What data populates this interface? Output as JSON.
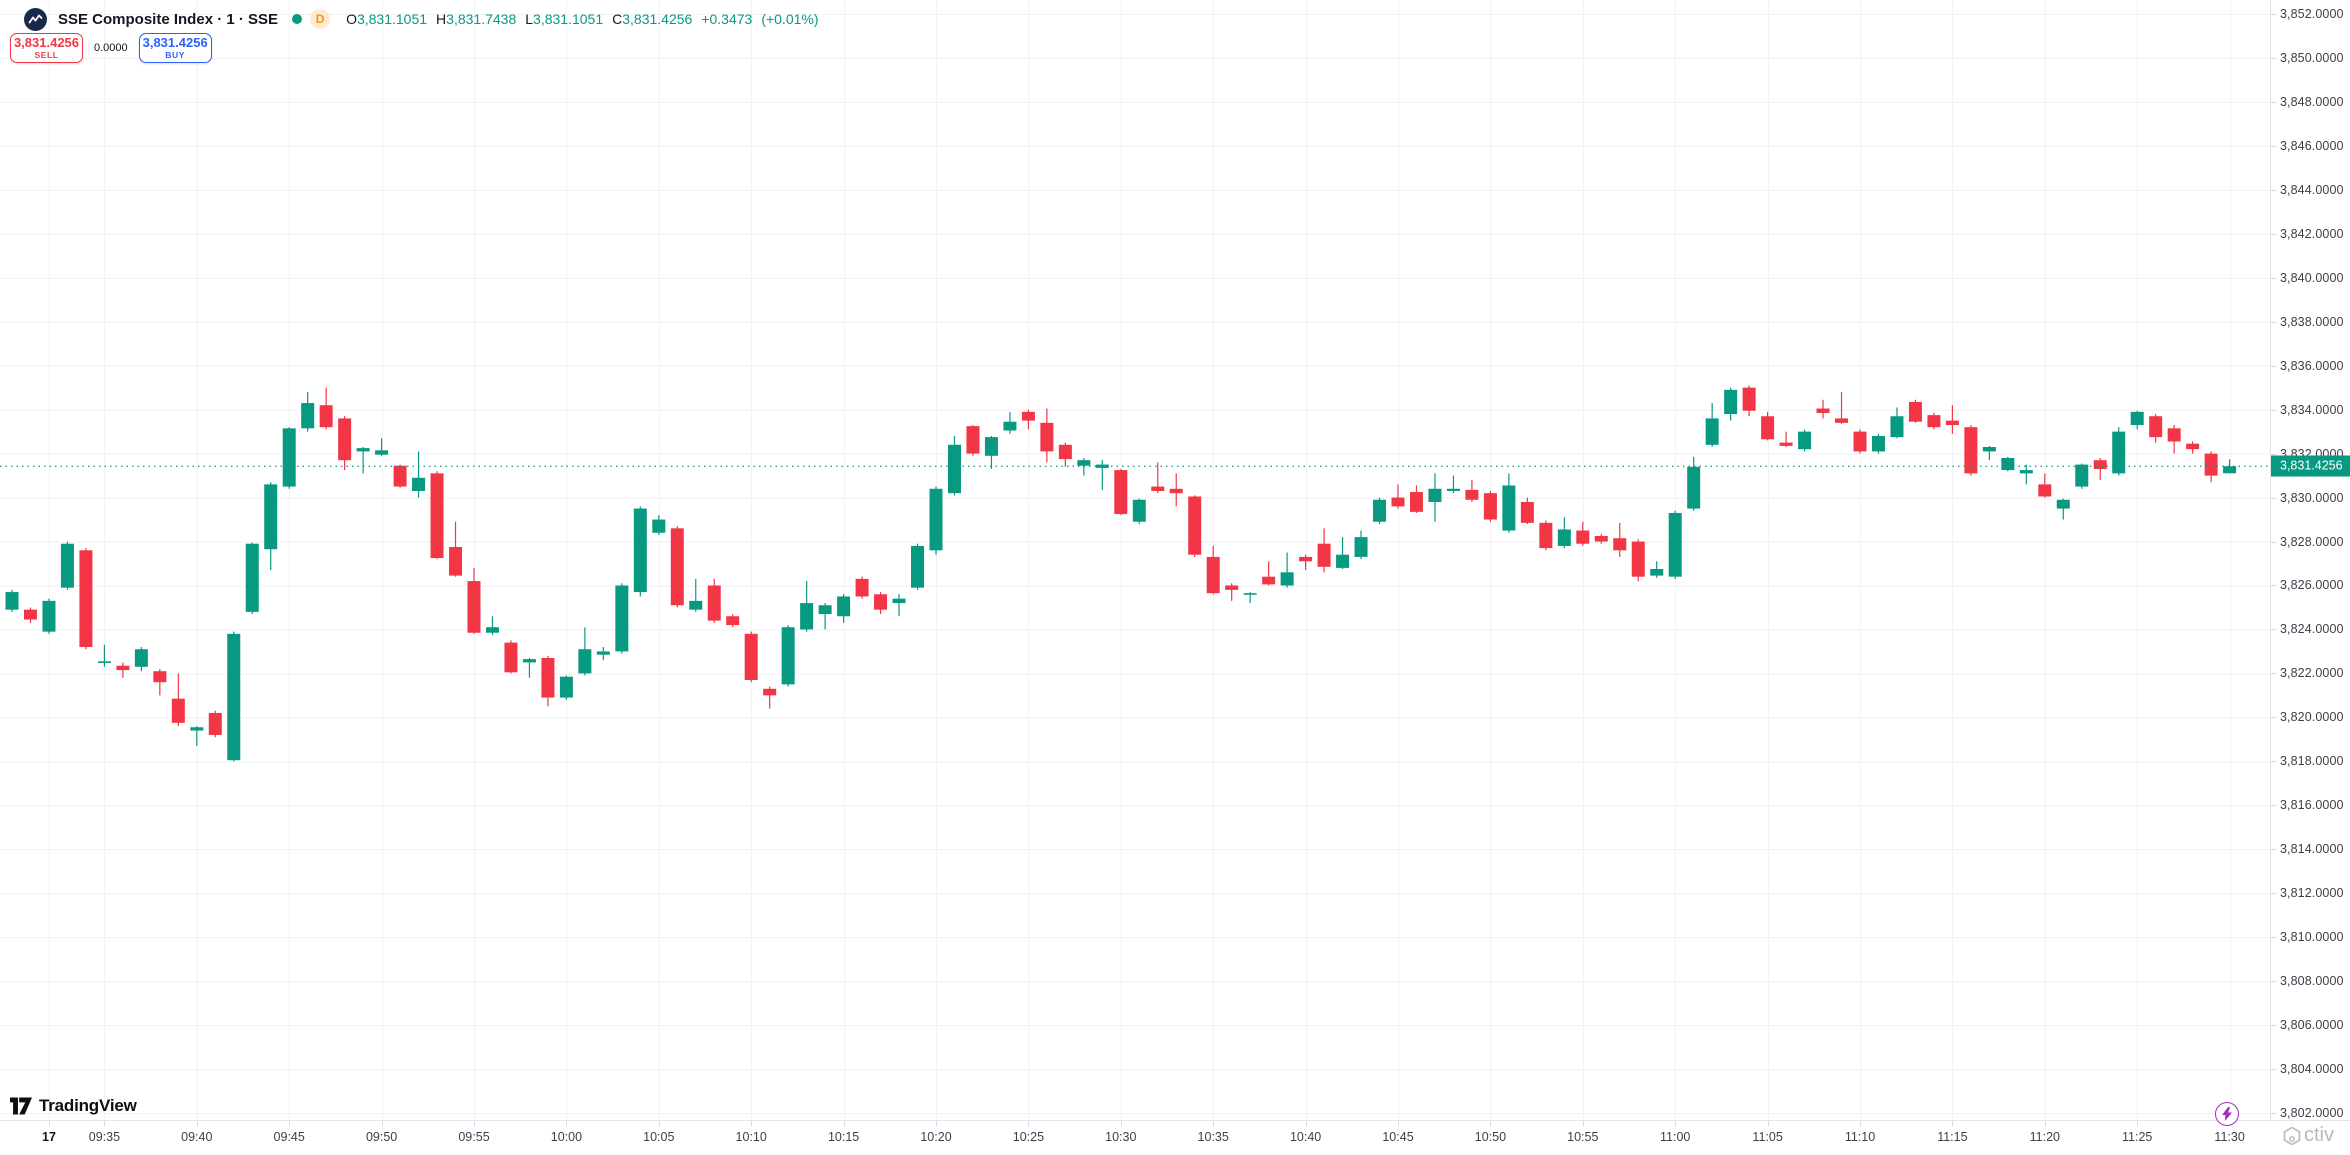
{
  "header": {
    "symbol_title": "SSE Composite Index · 1 · SSE",
    "delay_badge": "D",
    "ohlc": {
      "o_label": "O",
      "o": "3,831.1051",
      "h_label": "H",
      "h": "3,831.7438",
      "l_label": "L",
      "l": "3,831.1051",
      "c_label": "C",
      "c": "3,831.4256",
      "change": "+0.3473",
      "change_pct": "(+0.01%)"
    }
  },
  "order_panel": {
    "sell_price": "3,831.4256",
    "sell_label": "SELL",
    "spread": "0.0000",
    "buy_price": "3,831.4256",
    "buy_label": "BUY"
  },
  "price_axis": {
    "labels": [
      "3,852.0000",
      "3,850.0000",
      "3,848.0000",
      "3,846.0000",
      "3,844.0000",
      "3,842.0000",
      "3,840.0000",
      "3,838.0000",
      "3,836.0000",
      "3,834.0000",
      "3,832.0000",
      "3,830.0000",
      "3,828.0000",
      "3,826.0000",
      "3,824.0000",
      "3,822.0000",
      "3,820.0000",
      "3,818.0000",
      "3,816.0000",
      "3,814.0000",
      "3,812.0000",
      "3,810.0000",
      "3,808.0000",
      "3,806.0000",
      "3,804.0000",
      "3,802.0000"
    ],
    "last_price_label": "3,831.4256"
  },
  "time_axis": {
    "labels": [
      {
        "text": "17",
        "i": 2
      },
      {
        "text": "09:35",
        "i": 5
      },
      {
        "text": "09:40",
        "i": 10
      },
      {
        "text": "09:45",
        "i": 15
      },
      {
        "text": "09:50",
        "i": 20
      },
      {
        "text": "09:55",
        "i": 25
      },
      {
        "text": "10:00",
        "i": 30
      },
      {
        "text": "10:05",
        "i": 35
      },
      {
        "text": "10:10",
        "i": 40
      },
      {
        "text": "10:15",
        "i": 45
      },
      {
        "text": "10:20",
        "i": 50
      },
      {
        "text": "10:25",
        "i": 55
      },
      {
        "text": "10:30",
        "i": 60
      },
      {
        "text": "10:35",
        "i": 65
      },
      {
        "text": "10:40",
        "i": 70
      },
      {
        "text": "10:45",
        "i": 75
      },
      {
        "text": "10:50",
        "i": 80
      },
      {
        "text": "10:55",
        "i": 85
      },
      {
        "text": "11:00",
        "i": 90
      },
      {
        "text": "11:05",
        "i": 95
      },
      {
        "text": "11:10",
        "i": 100
      },
      {
        "text": "11:15",
        "i": 105
      },
      {
        "text": "11:20",
        "i": 110
      },
      {
        "text": "11:25",
        "i": 115
      },
      {
        "text": "11:30",
        "i": 120
      }
    ]
  },
  "footer": {
    "tradingview_label": "TradingView",
    "watermark_text": "ctiv"
  },
  "colors": {
    "up": "#089981",
    "down": "#f23645",
    "grid": "#f0f2f5",
    "last_price_line": "#089981",
    "last_price_bg": "#089981",
    "sell": "#f23645",
    "buy": "#2962ff",
    "lightning": "#a32cc4"
  },
  "chart_data": {
    "type": "candlestick",
    "title": "SSE Composite Index",
    "interval": "1",
    "exchange": "SSE",
    "session_date_label": "17",
    "last_price": 3831.4256,
    "y_axis": {
      "min": 3802,
      "max": 3852,
      "tick_step": 2,
      "grid": true
    },
    "x_axis": {
      "unit": "minute",
      "start": "09:30",
      "end": "11:30"
    },
    "columns": [
      "time",
      "open",
      "high",
      "low",
      "close"
    ],
    "rows": [
      [
        "09:30",
        3824.9,
        3825.8,
        3824.8,
        3825.7
      ],
      [
        "09:31",
        3824.9,
        3825.0,
        3824.3,
        3824.45
      ],
      [
        "09:32",
        3823.9,
        3825.4,
        3823.8,
        3825.3
      ],
      [
        "09:33",
        3825.9,
        3828.0,
        3825.8,
        3827.9
      ],
      [
        "09:34",
        3827.6,
        3827.7,
        3823.1,
        3823.2
      ],
      [
        "09:35",
        3822.5,
        3823.3,
        3822.3,
        3822.55
      ],
      [
        "09:36",
        3822.35,
        3822.5,
        3821.8,
        3822.15
      ],
      [
        "09:37",
        3822.3,
        3823.2,
        3822.1,
        3823.1
      ],
      [
        "09:38",
        3822.1,
        3822.2,
        3821.0,
        3821.6
      ],
      [
        "09:39",
        3820.85,
        3822.0,
        3819.6,
        3819.75
      ],
      [
        "09:40",
        3819.4,
        3819.6,
        3818.7,
        3819.55
      ],
      [
        "09:41",
        3820.2,
        3820.3,
        3819.1,
        3819.2
      ],
      [
        "09:42",
        3818.05,
        3823.9,
        3818.0,
        3823.8
      ],
      [
        "09:43",
        3824.8,
        3827.95,
        3824.7,
        3827.9
      ],
      [
        "09:44",
        3827.65,
        3830.7,
        3826.7,
        3830.6
      ],
      [
        "09:45",
        3830.5,
        3833.2,
        3830.4,
        3833.15
      ],
      [
        "09:46",
        3833.15,
        3834.8,
        3833.0,
        3834.3
      ],
      [
        "09:47",
        3834.2,
        3835.0,
        3833.1,
        3833.2
      ],
      [
        "09:48",
        3833.6,
        3833.7,
        3831.25,
        3831.7
      ],
      [
        "09:49",
        3832.1,
        3832.3,
        3831.1,
        3832.25
      ],
      [
        "09:50",
        3831.95,
        3832.7,
        3831.9,
        3832.15
      ],
      [
        "09:51",
        3831.45,
        3831.5,
        3830.45,
        3830.5
      ],
      [
        "09:52",
        3830.3,
        3832.1,
        3830.0,
        3830.9
      ],
      [
        "09:53",
        3831.1,
        3831.2,
        3827.2,
        3827.25
      ],
      [
        "09:54",
        3827.75,
        3828.9,
        3826.4,
        3826.45
      ],
      [
        "09:55",
        3826.2,
        3826.8,
        3823.8,
        3823.85
      ],
      [
        "09:56",
        3823.85,
        3824.6,
        3823.75,
        3824.1
      ],
      [
        "09:57",
        3823.4,
        3823.5,
        3822.0,
        3822.05
      ],
      [
        "09:58",
        3822.5,
        3822.7,
        3821.8,
        3822.65
      ],
      [
        "09:59",
        3822.7,
        3822.8,
        3820.5,
        3820.9
      ],
      [
        "10:00",
        3820.9,
        3821.9,
        3820.8,
        3821.85
      ],
      [
        "10:01",
        3822.0,
        3824.1,
        3821.9,
        3823.1
      ],
      [
        "10:02",
        3822.85,
        3823.2,
        3822.6,
        3823.0
      ],
      [
        "10:03",
        3823.0,
        3826.1,
        3822.9,
        3826.0
      ],
      [
        "10:04",
        3825.7,
        3829.6,
        3825.5,
        3829.5
      ],
      [
        "10:05",
        3828.4,
        3829.2,
        3828.3,
        3829.0
      ],
      [
        "10:06",
        3828.6,
        3828.7,
        3825.0,
        3825.1
      ],
      [
        "10:07",
        3824.9,
        3826.3,
        3824.8,
        3825.3
      ],
      [
        "10:08",
        3826.0,
        3826.3,
        3824.3,
        3824.4
      ],
      [
        "10:09",
        3824.6,
        3824.7,
        3824.1,
        3824.2
      ],
      [
        "10:10",
        3823.8,
        3823.9,
        3821.6,
        3821.7
      ],
      [
        "10:11",
        3821.3,
        3821.4,
        3820.4,
        3821.0
      ],
      [
        "10:12",
        3821.5,
        3824.2,
        3821.4,
        3824.1
      ],
      [
        "10:13",
        3824.0,
        3826.2,
        3823.9,
        3825.2
      ],
      [
        "10:14",
        3824.7,
        3825.2,
        3824.0,
        3825.1
      ],
      [
        "10:15",
        3824.6,
        3825.6,
        3824.3,
        3825.5
      ],
      [
        "10:16",
        3826.3,
        3826.4,
        3825.4,
        3825.5
      ],
      [
        "10:17",
        3825.6,
        3825.7,
        3824.7,
        3824.9
      ],
      [
        "10:18",
        3825.2,
        3825.6,
        3824.6,
        3825.4
      ],
      [
        "10:19",
        3825.9,
        3827.9,
        3825.8,
        3827.8
      ],
      [
        "10:20",
        3827.6,
        3830.5,
        3827.4,
        3830.4
      ],
      [
        "10:21",
        3830.2,
        3832.8,
        3830.1,
        3832.4
      ],
      [
        "10:22",
        3833.25,
        3833.3,
        3831.9,
        3832.0
      ],
      [
        "10:23",
        3831.9,
        3832.8,
        3831.3,
        3832.75
      ],
      [
        "10:24",
        3833.05,
        3833.9,
        3832.9,
        3833.45
      ],
      [
        "10:25",
        3833.9,
        3834.0,
        3833.1,
        3833.5
      ],
      [
        "10:26",
        3833.4,
        3834.05,
        3831.6,
        3832.1
      ],
      [
        "10:27",
        3832.4,
        3832.5,
        3831.4,
        3831.75
      ],
      [
        "10:28",
        3831.45,
        3831.8,
        3831.0,
        3831.7
      ],
      [
        "10:29",
        3831.35,
        3831.7,
        3830.35,
        3831.5
      ],
      [
        "10:30",
        3831.25,
        3831.3,
        3829.2,
        3829.25
      ],
      [
        "10:31",
        3828.9,
        3829.95,
        3828.8,
        3829.9
      ],
      [
        "10:32",
        3830.5,
        3831.6,
        3830.2,
        3830.3
      ],
      [
        "10:33",
        3830.4,
        3831.1,
        3829.6,
        3830.2
      ],
      [
        "10:34",
        3830.05,
        3830.1,
        3827.3,
        3827.4
      ],
      [
        "10:35",
        3827.3,
        3827.8,
        3825.6,
        3825.65
      ],
      [
        "10:36",
        3826.0,
        3826.1,
        3825.3,
        3825.8
      ],
      [
        "10:37",
        3825.6,
        3825.7,
        3825.2,
        3825.65
      ],
      [
        "10:38",
        3826.4,
        3827.1,
        3826.0,
        3826.05
      ],
      [
        "10:39",
        3826.0,
        3827.5,
        3825.9,
        3826.6
      ],
      [
        "10:40",
        3827.3,
        3827.4,
        3826.7,
        3827.1
      ],
      [
        "10:41",
        3827.9,
        3828.6,
        3826.6,
        3826.85
      ],
      [
        "10:42",
        3826.8,
        3828.2,
        3826.75,
        3827.4
      ],
      [
        "10:43",
        3827.3,
        3828.5,
        3827.2,
        3828.2
      ],
      [
        "10:44",
        3828.9,
        3830.0,
        3828.8,
        3829.9
      ],
      [
        "10:45",
        3830.0,
        3830.6,
        3829.5,
        3829.6
      ],
      [
        "10:46",
        3830.25,
        3830.55,
        3829.3,
        3829.35
      ],
      [
        "10:47",
        3829.8,
        3831.1,
        3828.9,
        3830.4
      ],
      [
        "10:48",
        3830.3,
        3831.0,
        3830.2,
        3830.4
      ],
      [
        "10:49",
        3830.35,
        3830.8,
        3829.8,
        3829.9
      ],
      [
        "10:50",
        3830.2,
        3830.3,
        3828.9,
        3829.0
      ],
      [
        "10:51",
        3828.5,
        3831.1,
        3828.4,
        3830.55
      ],
      [
        "10:52",
        3829.8,
        3830.0,
        3828.8,
        3828.85
      ],
      [
        "10:53",
        3828.85,
        3828.95,
        3827.6,
        3827.7
      ],
      [
        "10:54",
        3827.8,
        3829.1,
        3827.7,
        3828.55
      ],
      [
        "10:55",
        3828.5,
        3828.9,
        3827.8,
        3827.9
      ],
      [
        "10:56",
        3828.25,
        3828.35,
        3827.9,
        3828.0
      ],
      [
        "10:57",
        3828.15,
        3828.85,
        3827.3,
        3827.6
      ],
      [
        "10:58",
        3828.0,
        3828.1,
        3826.2,
        3826.4
      ],
      [
        "10:59",
        3826.45,
        3827.1,
        3826.35,
        3826.75
      ],
      [
        "11:00",
        3826.4,
        3829.4,
        3826.3,
        3829.3
      ],
      [
        "11:01",
        3829.5,
        3831.85,
        3829.4,
        3831.4
      ],
      [
        "11:02",
        3832.4,
        3834.3,
        3832.3,
        3833.6
      ],
      [
        "11:03",
        3833.8,
        3835.0,
        3833.5,
        3834.9
      ],
      [
        "11:04",
        3835.0,
        3835.1,
        3833.7,
        3833.95
      ],
      [
        "11:05",
        3833.7,
        3833.9,
        3832.6,
        3832.65
      ],
      [
        "11:06",
        3832.5,
        3833.0,
        3832.3,
        3832.35
      ],
      [
        "11:07",
        3832.2,
        3833.1,
        3832.1,
        3833.0
      ],
      [
        "11:08",
        3834.05,
        3834.45,
        3833.6,
        3833.85
      ],
      [
        "11:09",
        3833.6,
        3834.8,
        3833.35,
        3833.4
      ],
      [
        "11:10",
        3833.0,
        3833.1,
        3832.0,
        3832.1
      ],
      [
        "11:11",
        3832.1,
        3832.9,
        3832.0,
        3832.8
      ],
      [
        "11:12",
        3832.75,
        3834.1,
        3832.7,
        3833.7
      ],
      [
        "11:13",
        3834.35,
        3834.45,
        3833.4,
        3833.45
      ],
      [
        "11:14",
        3833.75,
        3833.85,
        3833.1,
        3833.2
      ],
      [
        "11:15",
        3833.5,
        3834.2,
        3832.9,
        3833.3
      ],
      [
        "11:16",
        3833.2,
        3833.3,
        3831.0,
        3831.1
      ],
      [
        "11:17",
        3832.1,
        3832.35,
        3831.7,
        3832.3
      ],
      [
        "11:18",
        3831.25,
        3831.85,
        3831.2,
        3831.8
      ],
      [
        "11:19",
        3831.1,
        3831.5,
        3830.6,
        3831.25
      ],
      [
        "11:20",
        3830.6,
        3831.1,
        3830.0,
        3830.05
      ],
      [
        "11:21",
        3829.5,
        3829.95,
        3829.0,
        3829.9
      ],
      [
        "11:22",
        3830.5,
        3831.55,
        3830.4,
        3831.5
      ],
      [
        "11:23",
        3831.7,
        3831.8,
        3830.8,
        3831.3
      ],
      [
        "11:24",
        3831.1,
        3833.2,
        3831.0,
        3833.0
      ],
      [
        "11:25",
        3833.3,
        3833.95,
        3833.1,
        3833.9
      ],
      [
        "11:26",
        3833.7,
        3833.8,
        3832.5,
        3832.75
      ],
      [
        "11:27",
        3833.15,
        3833.3,
        3832.0,
        3832.55
      ],
      [
        "11:28",
        3832.45,
        3832.55,
        3832.0,
        3832.2
      ],
      [
        "11:29",
        3832.0,
        3832.1,
        3830.7,
        3831.0
      ],
      [
        "11:30",
        3831.1051,
        3831.7438,
        3831.1051,
        3831.4256
      ]
    ]
  }
}
